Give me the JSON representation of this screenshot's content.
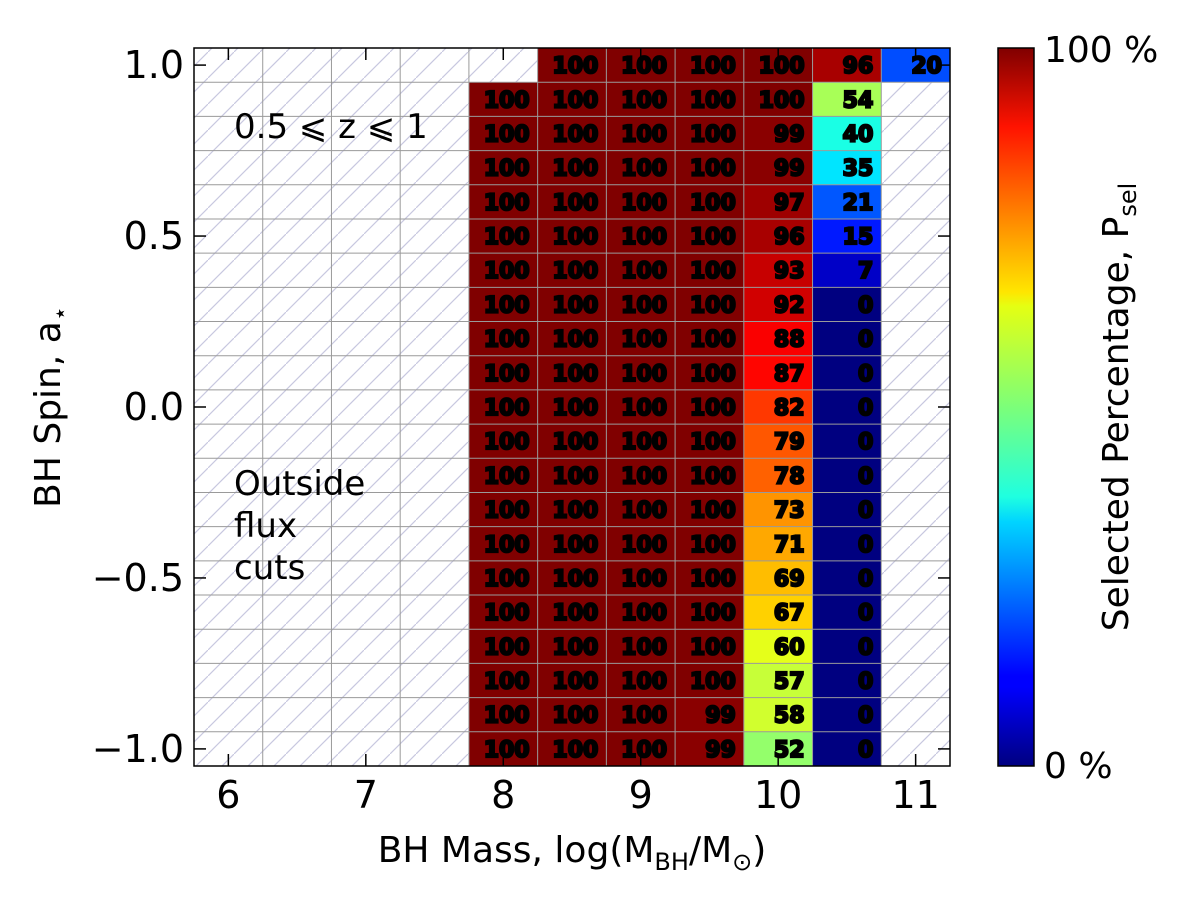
{
  "chart_data": {
    "type": "heatmap",
    "xlabel": "BH Mass, log(M",
    "xlabel_sub_bh": "BH",
    "xlabel_mid": "/M",
    "xlabel_sub_sun": "⊙",
    "xlabel_end": ")",
    "ylabel": "BH Spin, a",
    "ylabel_sub": "⋆",
    "colorbar_label": "Selected Percentage, P",
    "colorbar_label_sub": "sel",
    "colorbar_max_label": "100 %",
    "colorbar_min_label": "0 %",
    "colormap": "jet",
    "annotation_redshift": "0.5 ⩽ z ⩽ 1",
    "annotation_outside": [
      "Outside",
      "flux",
      "cuts"
    ],
    "x_ticks": [
      "6",
      "7",
      "8",
      "9",
      "10",
      "11"
    ],
    "y_ticks": [
      "1.0",
      "0.5",
      "0.0",
      "−0.5",
      "−1.0"
    ],
    "xlim": [
      5.75,
      11.25
    ],
    "ylim": [
      -1.05,
      1.05
    ],
    "x_centers": [
      6,
      6.5,
      7,
      7.5,
      8,
      8.5,
      9,
      9.5,
      10,
      10.5,
      11
    ],
    "y_centers": [
      1.0,
      0.9,
      0.8,
      0.7,
      0.6,
      0.5,
      0.4,
      0.3,
      0.2,
      0.1,
      0.0,
      -0.1,
      -0.2,
      -0.3,
      -0.4,
      -0.5,
      -0.6,
      -0.7,
      -0.8,
      -0.9,
      -1.0
    ],
    "grid": true,
    "hatch_empty": true,
    "rows": [
      [
        null,
        null,
        null,
        null,
        null,
        100,
        100,
        100,
        100,
        96,
        20
      ],
      [
        null,
        null,
        null,
        null,
        100,
        100,
        100,
        100,
        100,
        54,
        null
      ],
      [
        null,
        null,
        null,
        null,
        100,
        100,
        100,
        100,
        99,
        40,
        null
      ],
      [
        null,
        null,
        null,
        null,
        100,
        100,
        100,
        100,
        99,
        35,
        null
      ],
      [
        null,
        null,
        null,
        null,
        100,
        100,
        100,
        100,
        97,
        21,
        null
      ],
      [
        null,
        null,
        null,
        null,
        100,
        100,
        100,
        100,
        96,
        15,
        null
      ],
      [
        null,
        null,
        null,
        null,
        100,
        100,
        100,
        100,
        93,
        7,
        null
      ],
      [
        null,
        null,
        null,
        null,
        100,
        100,
        100,
        100,
        92,
        0,
        null
      ],
      [
        null,
        null,
        null,
        null,
        100,
        100,
        100,
        100,
        88,
        0,
        null
      ],
      [
        null,
        null,
        null,
        null,
        100,
        100,
        100,
        100,
        87,
        0,
        null
      ],
      [
        null,
        null,
        null,
        null,
        100,
        100,
        100,
        100,
        82,
        0,
        null
      ],
      [
        null,
        null,
        null,
        null,
        100,
        100,
        100,
        100,
        79,
        0,
        null
      ],
      [
        null,
        null,
        null,
        null,
        100,
        100,
        100,
        100,
        78,
        0,
        null
      ],
      [
        null,
        null,
        null,
        null,
        100,
        100,
        100,
        100,
        73,
        0,
        null
      ],
      [
        null,
        null,
        null,
        null,
        100,
        100,
        100,
        100,
        71,
        0,
        null
      ],
      [
        null,
        null,
        null,
        null,
        100,
        100,
        100,
        100,
        69,
        0,
        null
      ],
      [
        null,
        null,
        null,
        null,
        100,
        100,
        100,
        100,
        67,
        0,
        null
      ],
      [
        null,
        null,
        null,
        null,
        100,
        100,
        100,
        100,
        60,
        0,
        null
      ],
      [
        null,
        null,
        null,
        null,
        100,
        100,
        100,
        100,
        57,
        0,
        null
      ],
      [
        null,
        null,
        null,
        null,
        100,
        100,
        100,
        99,
        58,
        0,
        null
      ],
      [
        null,
        null,
        null,
        null,
        100,
        100,
        100,
        99,
        52,
        0,
        null
      ]
    ]
  }
}
